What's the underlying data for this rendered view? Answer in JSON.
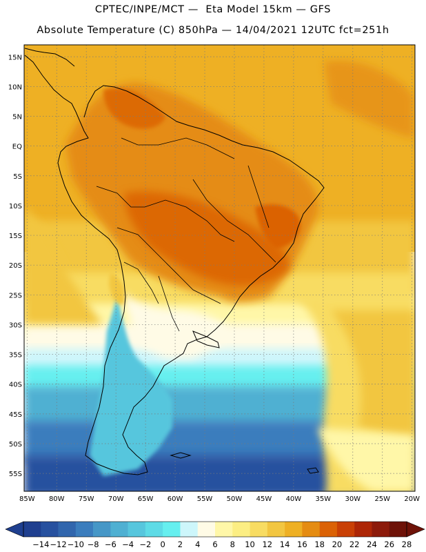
{
  "header": {
    "line1": "CPTEC/INPE/MCT —  Eta Model 15km — GFS",
    "line2": "Absolute Temperature (C) 850hPa — 14/04/2021 12UTC fct=251h"
  },
  "map": {
    "region": "South America",
    "lat_labels": [
      "15N",
      "10N",
      "5N",
      "EQ",
      "5S",
      "10S",
      "15S",
      "20S",
      "25S",
      "30S",
      "35S",
      "40S",
      "45S",
      "50S",
      "55S"
    ],
    "lon_labels": [
      "85W",
      "80W",
      "75W",
      "70W",
      "65W",
      "60W",
      "55W",
      "50W",
      "45W",
      "40W",
      "35W",
      "30W",
      "25W",
      "20W"
    ],
    "lat_values": [
      15,
      10,
      5,
      0,
      -5,
      -10,
      -15,
      -20,
      -25,
      -30,
      -35,
      -40,
      -45,
      -50,
      -55
    ],
    "lon_values": [
      -85,
      -80,
      -75,
      -70,
      -65,
      -60,
      -55,
      -50,
      -45,
      -40,
      -35,
      -30,
      -25,
      -20
    ],
    "extent": {
      "lon_min": -85.5,
      "lon_max": -19.5,
      "lat_min": -58,
      "lat_max": 17
    },
    "grid": true,
    "projection": "cylindrical"
  },
  "colorbar": {
    "ticks": [
      "-14",
      "-12",
      "-10",
      "-8",
      "-6",
      "-4",
      "-2",
      "0",
      "2",
      "4",
      "6",
      "8",
      "10",
      "12",
      "14",
      "16",
      "18",
      "20",
      "22",
      "24",
      "26",
      "28"
    ],
    "colors": [
      "#1f3f8f",
      "#27519f",
      "#3166ad",
      "#3b7dbd",
      "#4697c7",
      "#4fb0d2",
      "#57c6dd",
      "#5edbe6",
      "#66efef",
      "#cdf6fb",
      "#fffbe6",
      "#fff7a8",
      "#fcee83",
      "#f8dc62",
      "#f2c641",
      "#eeb024",
      "#e58c12",
      "#db6205",
      "#c94005",
      "#ad2606",
      "#8c1a0a",
      "#6e1208"
    ],
    "extend": "both"
  },
  "colors": {
    "land_tropical": "#eea12a",
    "land_hot": "#dc6a12",
    "ocean_warm": "#f2bd3c",
    "ocean_mid": "#f8dc62",
    "ocean_cool": "#fff7a8",
    "cold_south": "#4fb0d2"
  }
}
